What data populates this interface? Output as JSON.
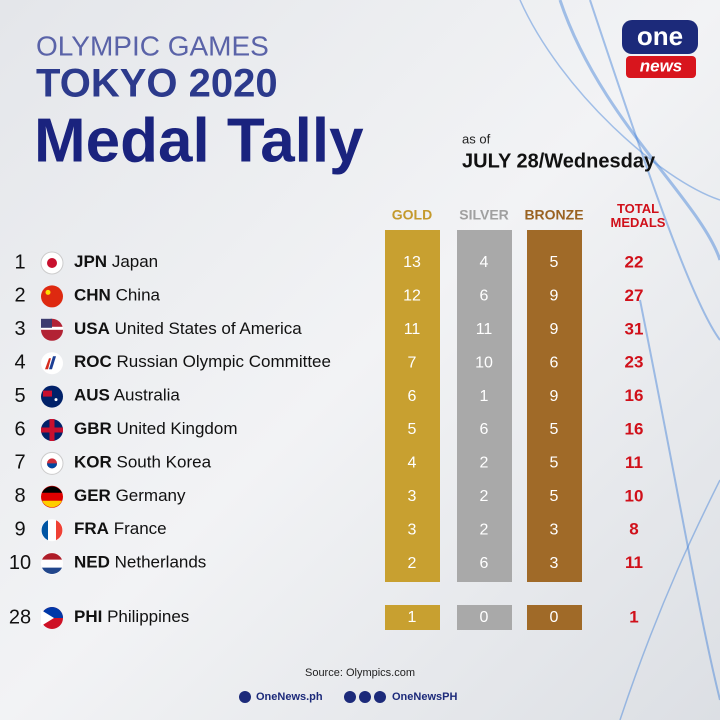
{
  "header": {
    "line1": "OLYMPIC GAMES",
    "line2": "TOKYO 2020",
    "line3": "Medal Tally",
    "as_of": "as of",
    "date": "JULY 28/Wednesday"
  },
  "logo": {
    "top": "one",
    "bottom": "news"
  },
  "table": {
    "columns": [
      "GOLD",
      "SILVER",
      "BRONZE",
      "TOTAL MEDALS"
    ],
    "rows": [
      {
        "rank": 1,
        "code": "JPN",
        "name": "Japan",
        "gold": 13,
        "silver": 4,
        "bronze": 5,
        "total": 22
      },
      {
        "rank": 2,
        "code": "CHN",
        "name": "China",
        "gold": 12,
        "silver": 6,
        "bronze": 9,
        "total": 27
      },
      {
        "rank": 3,
        "code": "USA",
        "name": "United States of America",
        "gold": 11,
        "silver": 11,
        "bronze": 9,
        "total": 31
      },
      {
        "rank": 4,
        "code": "ROC",
        "name": "Russian Olympic Committee",
        "gold": 7,
        "silver": 10,
        "bronze": 6,
        "total": 23
      },
      {
        "rank": 5,
        "code": "AUS",
        "name": "Australia",
        "gold": 6,
        "silver": 1,
        "bronze": 9,
        "total": 16
      },
      {
        "rank": 6,
        "code": "GBR",
        "name": "United Kingdom",
        "gold": 5,
        "silver": 6,
        "bronze": 5,
        "total": 16
      },
      {
        "rank": 7,
        "code": "KOR",
        "name": "South Korea",
        "gold": 4,
        "silver": 2,
        "bronze": 5,
        "total": 11
      },
      {
        "rank": 8,
        "code": "GER",
        "name": "Germany",
        "gold": 3,
        "silver": 2,
        "bronze": 5,
        "total": 10
      },
      {
        "rank": 9,
        "code": "FRA",
        "name": "France",
        "gold": 3,
        "silver": 2,
        "bronze": 3,
        "total": 8
      },
      {
        "rank": 10,
        "code": "NED",
        "name": "Netherlands",
        "gold": 2,
        "silver": 6,
        "bronze": 3,
        "total": 11
      }
    ],
    "extra_row": {
      "rank": 28,
      "code": "PHI",
      "name": "Philippines",
      "gold": 1,
      "silver": 0,
      "bronze": 0,
      "total": 1
    }
  },
  "footer": {
    "source": "Source: Olympics.com",
    "site": "OneNews.ph",
    "handle": "OneNewsPH"
  }
}
